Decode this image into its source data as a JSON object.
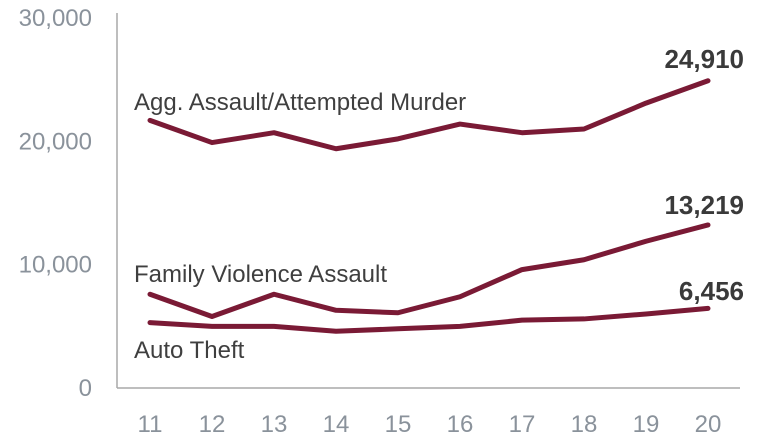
{
  "chart_data": {
    "type": "line",
    "categories": [
      "11",
      "12",
      "13",
      "14",
      "15",
      "16",
      "17",
      "18",
      "19",
      "20"
    ],
    "ylim": [
      0,
      30000
    ],
    "yticks": [
      {
        "value": 0,
        "label": "0"
      },
      {
        "value": 10000,
        "label": "10,000"
      },
      {
        "value": 20000,
        "label": "20,000"
      },
      {
        "value": 30000,
        "label": "30,000"
      }
    ],
    "grid": false,
    "line_color": "#7a1a35",
    "series": [
      {
        "name": "Agg. Assault/Attempted Murder",
        "values": [
          21700,
          19900,
          20700,
          19400,
          20200,
          21400,
          20700,
          21000,
          23100,
          24910
        ],
        "end_label": "24,910"
      },
      {
        "name": "Family Violence Assault",
        "values": [
          7600,
          5800,
          7600,
          6300,
          6100,
          7400,
          9600,
          10400,
          11900,
          13219
        ],
        "end_label": "13,219"
      },
      {
        "name": "Auto Theft",
        "values": [
          5300,
          5000,
          5000,
          4600,
          4800,
          5000,
          5500,
          5600,
          6000,
          6456
        ],
        "end_label": "6,456"
      }
    ]
  }
}
